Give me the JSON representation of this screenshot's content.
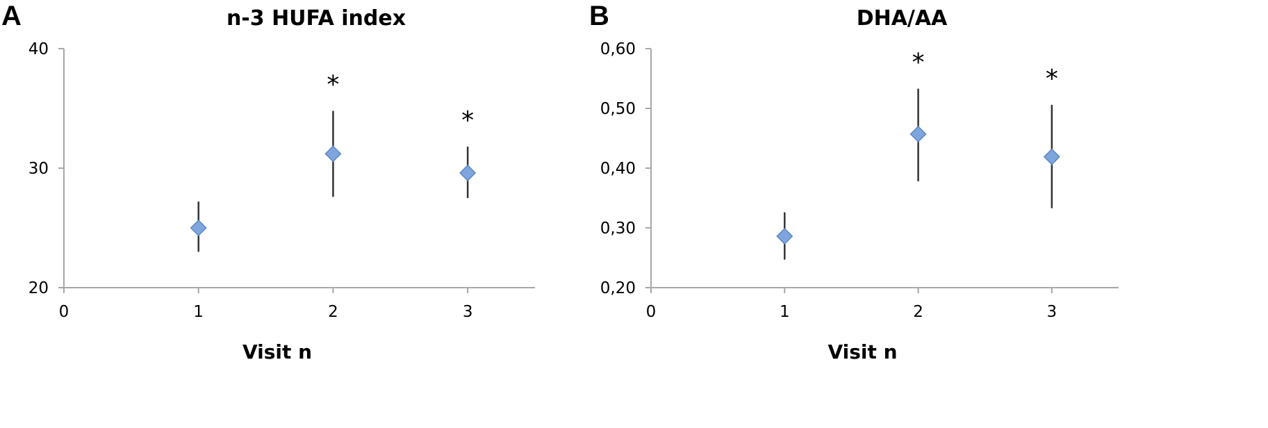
{
  "chart_data": [
    {
      "panel": "A",
      "type": "scatter",
      "title": "n-3 HUFA index",
      "xlabel": "Visit n",
      "ylabel": "",
      "xlim": [
        0,
        3.5
      ],
      "ylim": [
        20,
        40
      ],
      "x_ticks": [
        "0",
        "1",
        "2",
        "3"
      ],
      "y_ticks": [
        "20",
        "30",
        "40"
      ],
      "marker_color": "#7ea6dc",
      "points": [
        {
          "x": 1,
          "y": 25.0,
          "err_low": 23.0,
          "err_high": 27.2,
          "annotation": ""
        },
        {
          "x": 2,
          "y": 31.2,
          "err_low": 27.6,
          "err_high": 34.8,
          "annotation": "*"
        },
        {
          "x": 3,
          "y": 29.6,
          "err_low": 27.5,
          "err_high": 31.8,
          "annotation": "*"
        }
      ]
    },
    {
      "panel": "B",
      "type": "scatter",
      "title": "DHA/AA",
      "xlabel": "Visit n",
      "ylabel": "",
      "xlim": [
        0,
        3.5
      ],
      "ylim": [
        0.2,
        0.6
      ],
      "x_ticks": [
        "0",
        "1",
        "2",
        "3"
      ],
      "y_ticks": [
        "0,20",
        "0,30",
        "0,40",
        "0,50",
        "0,60"
      ],
      "marker_color": "#7ea6dc",
      "points": [
        {
          "x": 1,
          "y": 0.286,
          "err_low": 0.247,
          "err_high": 0.326,
          "annotation": ""
        },
        {
          "x": 2,
          "y": 0.457,
          "err_low": 0.378,
          "err_high": 0.533,
          "annotation": "*"
        },
        {
          "x": 3,
          "y": 0.419,
          "err_low": 0.333,
          "err_high": 0.506,
          "annotation": "*"
        }
      ]
    }
  ]
}
